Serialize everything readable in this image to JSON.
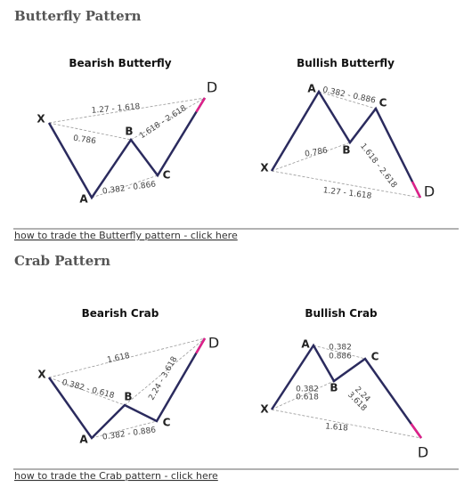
{
  "sections": [
    {
      "title": "Butterfly Pattern",
      "diagrams": [
        {
          "title": "Bearish Butterfly",
          "points": [
            "X",
            "A",
            "B",
            "C",
            "D"
          ],
          "ratios": [
            "1.27 - 1.618",
            "0.786",
            "0.382 - 0.866",
            "1.618 - 2.618"
          ]
        },
        {
          "title": "Bullish Butterfly",
          "points": [
            "X",
            "A",
            "B",
            "C",
            "D"
          ],
          "ratios": [
            "0.382 - 0.886",
            "0.786",
            "1.27 - 1.618",
            "1.618 - 2.618"
          ]
        }
      ],
      "link": "how to trade the Butterfly pattern - click here"
    },
    {
      "title": "Crab Pattern",
      "diagrams": [
        {
          "title": "Bearish Crab",
          "points": [
            "X",
            "A",
            "B",
            "C",
            "D"
          ],
          "ratios": [
            "1.618",
            "0.382 - 0.618",
            "2.24 - 3.618",
            "0.382 - 0.886"
          ]
        },
        {
          "title": "Bullish Crab",
          "points": [
            "X",
            "A",
            "B",
            "C",
            "D"
          ],
          "ratios": [
            "0.382",
            "0.886",
            "0.382",
            "0.618",
            "2.24",
            "3.618",
            "1.618"
          ]
        }
      ],
      "link": "how to trade the Crab pattern - click here"
    }
  ]
}
